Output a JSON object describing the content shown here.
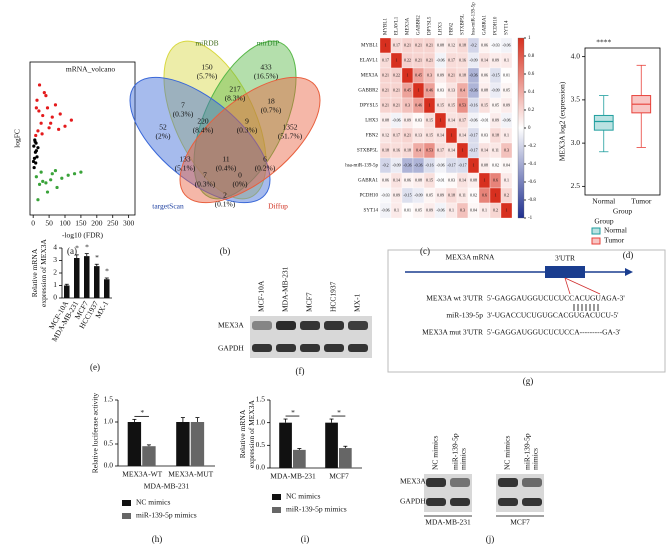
{
  "chart_data": [
    {
      "type": "scatter",
      "panel_label": "(a)",
      "title": "mRNA_volcano",
      "x_label": "-log10 (FDR)",
      "y_label": "logFC",
      "xlim": [
        -10,
        320
      ],
      "xticks": [
        0,
        50,
        100,
        150,
        200,
        250,
        300
      ],
      "ylim": [
        -4,
        6
      ],
      "series": [
        {
          "color": "#e41a1c",
          "x": [
            10,
            20,
            30,
            40,
            55,
            70,
            85,
            100,
            120,
            15,
            25,
            35,
            45,
            60,
            80,
            8,
            12,
            18,
            28,
            50
          ],
          "values": [
            3.0,
            4.5,
            2.5,
            3.8,
            2.0,
            3.2,
            2.6,
            1.8,
            2.2,
            1.5,
            2.0,
            4.0,
            3.0,
            2.4,
            1.6,
            1.2,
            3.5,
            2.8,
            1.3,
            1.7
          ]
        },
        {
          "color": "#000000",
          "x": [
            2,
            4,
            6,
            8,
            10,
            3,
            5,
            7,
            12,
            15,
            1,
            9
          ],
          "values": [
            0.5,
            -0.3,
            0.8,
            -0.6,
            0.2,
            -0.9,
            0.9,
            0.1,
            -0.2,
            0.4,
            -0.5,
            0.7
          ]
        },
        {
          "color": "#3aa33a",
          "x": [
            10,
            20,
            30,
            45,
            60,
            75,
            90,
            110,
            15,
            25,
            40,
            55,
            70,
            130,
            150
          ],
          "values": [
            -1.5,
            -2.0,
            -1.8,
            -2.5,
            -1.3,
            -2.2,
            -1.6,
            -1.4,
            -3.0,
            -1.2,
            -1.9,
            -1.7,
            -1.1,
            -1.3,
            -1.2
          ]
        }
      ]
    },
    {
      "type": "heatmap",
      "panel_label": "(c)",
      "labels": [
        "MYBL1",
        "ELAVL1",
        "MEX3A",
        "GABBR2",
        "DPYSL5",
        "LHX3",
        "FBN2",
        "STXBP5L",
        "hsa-miR-139-5p",
        "GABRA1",
        "PCDH10",
        "SYT14"
      ],
      "values": [
        [
          1,
          0.17,
          0.21,
          0.21,
          0.21,
          0.08,
          0.12,
          0.18,
          -0.2,
          0.06,
          -0.03,
          -0.06
        ],
        [
          0.17,
          1,
          0.22,
          0.21,
          0.21,
          -0.06,
          0.17,
          0.16,
          -0.09,
          0.14,
          0.09,
          0.1
        ],
        [
          0.21,
          0.22,
          1,
          0.45,
          0.3,
          0.09,
          0.21,
          0.18,
          -0.36,
          0.06,
          -0.15,
          0.01
        ],
        [
          0.21,
          0.21,
          0.45,
          1,
          0.46,
          0.03,
          0.13,
          0.4,
          -0.36,
          0.08,
          -0.09,
          0.05
        ],
        [
          0.21,
          0.21,
          0.3,
          0.46,
          1,
          0.15,
          0.15,
          0.53,
          -0.16,
          0.15,
          0.05,
          0.09
        ],
        [
          0.08,
          -0.06,
          0.09,
          0.03,
          0.15,
          1,
          0.14,
          0.17,
          -0.06,
          -0.01,
          0.09,
          -0.06
        ],
        [
          0.12,
          0.17,
          0.21,
          0.13,
          0.15,
          0.14,
          1,
          0.14,
          -0.17,
          0.03,
          0.18,
          0.1
        ],
        [
          0.18,
          0.16,
          0.18,
          0.4,
          0.53,
          0.17,
          0.14,
          1,
          -0.17,
          0.14,
          0.11,
          0.3
        ],
        [
          -0.2,
          -0.09,
          -0.36,
          -0.36,
          -0.16,
          -0.06,
          -0.17,
          -0.17,
          1,
          0.08,
          0.02,
          0.04
        ],
        [
          0.06,
          0.14,
          0.06,
          0.08,
          0.15,
          -0.01,
          0.03,
          0.14,
          0.08,
          1,
          0.6,
          0.1
        ],
        [
          -0.03,
          0.09,
          -0.15,
          -0.09,
          0.05,
          0.09,
          0.18,
          0.11,
          0.02,
          0.6,
          1,
          0.2
        ],
        [
          -0.06,
          0.1,
          0.01,
          0.05,
          0.09,
          -0.06,
          0.1,
          0.3,
          0.04,
          0.1,
          0.2,
          1
        ]
      ],
      "zlim": [
        -1,
        1
      ],
      "zticks": [
        1,
        0.8,
        0.6,
        0.4,
        0.2,
        0,
        -0.2,
        -0.4,
        -0.6,
        -0.8,
        -1
      ],
      "colors": [
        "#1f2f8f",
        "#ffffff",
        "#d7301f"
      ]
    },
    {
      "type": "box",
      "panel_label": "(d)",
      "annotation": "****",
      "y_label": "MEX3A log2 (expression)",
      "x_label": "Group",
      "legend_title": "Group",
      "categories": [
        "Normal",
        "Tumor"
      ],
      "colors": [
        "#1f9e9e",
        "#e8413a"
      ],
      "boxes": [
        {
          "min": 2.9,
          "q1": 3.15,
          "median": 3.25,
          "q3": 3.32,
          "max": 3.55
        },
        {
          "min": 2.95,
          "q1": 3.35,
          "median": 3.45,
          "q3": 3.55,
          "max": 3.9
        }
      ],
      "ylim": [
        2.4,
        4.1
      ],
      "yticks": [
        2.5,
        {
          "value": 3,
          "label": "3.0"
        },
        3.5,
        {
          "value": 4,
          "label": "4.0"
        }
      ]
    },
    {
      "type": "bar",
      "panel_label": "(e)",
      "y_label": [
        "Relative mRNA",
        "expression of MEX3A"
      ],
      "categories": [
        "MCF-10A",
        "MDA-MB-231",
        "MCF7",
        "HCC1937",
        "MX-1"
      ],
      "values": [
        1,
        3.2,
        3.35,
        2.55,
        1.5
      ],
      "errors": [
        0.1,
        0.25,
        0.2,
        0.15,
        0.1
      ],
      "annotations": [
        null,
        "*",
        "*",
        "*",
        "*"
      ],
      "color": "#111111",
      "ylim": [
        0,
        4
      ],
      "yticks": [
        0,
        1,
        2,
        3,
        4
      ]
    },
    {
      "type": "bar",
      "panel_label": "(h)",
      "y_label": [
        "Relative luciferase activity"
      ],
      "x_label": "MDA-MB-231",
      "categories": [
        "MEX3A-WT",
        "MEX3A-MUT"
      ],
      "series": [
        {
          "name": "NC mimics",
          "color": "#111111",
          "values": [
            1,
            1
          ],
          "errors": [
            0.06,
            0.1
          ]
        },
        {
          "name": "miR-139-5p mimics",
          "color": "#666666",
          "values": [
            0.45,
            1
          ],
          "errors": [
            0.03,
            0.1
          ]
        }
      ],
      "annotations": [
        "*",
        null
      ],
      "ylim": [
        0,
        1.5
      ],
      "yticks": [
        {
          "value": 0,
          "label": "0.0"
        },
        0.5,
        {
          "value": 1,
          "label": "1.0"
        },
        1.5
      ]
    },
    {
      "type": "bar",
      "panel_label": "(i)",
      "y_label": [
        "Relative mRNA",
        "expression of MEX3A"
      ],
      "categories": [
        "MDA-MB-231",
        "MCF7"
      ],
      "series": [
        {
          "name": "NC mimics",
          "color": "#111111",
          "values": [
            1,
            1
          ],
          "errors": [
            0.08,
            0.08
          ]
        },
        {
          "name": "miR-139-5p mimics",
          "color": "#666666",
          "values": [
            0.4,
            0.44
          ],
          "errors": [
            0.03,
            0.04
          ]
        }
      ],
      "annotations": [
        "*",
        "*"
      ],
      "ylim": [
        0,
        1.5
      ],
      "yticks": [
        {
          "value": 0,
          "label": "0.0"
        },
        0.5,
        {
          "value": 1,
          "label": "1.0"
        },
        1.5
      ]
    }
  ],
  "venn": {
    "panel_label": "(b)",
    "sets": [
      "miRDB",
      "mirDIP",
      "targetScan",
      "Diffup"
    ],
    "regions": [
      [
        "150",
        "(5.7%)"
      ],
      [
        "433",
        "(16.5%)"
      ],
      [
        "52",
        "(2%)"
      ],
      [
        "1352",
        "(51.7%)"
      ],
      [
        "7",
        "(0.3%)"
      ],
      [
        "217",
        "(8.3%)"
      ],
      [
        "220",
        "(8.4%)"
      ],
      [
        "9",
        "(0.3%)"
      ],
      [
        "18",
        "(0.7%)"
      ],
      [
        "133",
        "(5.1%)"
      ],
      [
        "11",
        "(0.4%)"
      ],
      [
        "7",
        "(0.3%)"
      ],
      [
        "0",
        "(0%)"
      ],
      [
        "6",
        "(0.2%)"
      ],
      [
        "2",
        "(0.1%)"
      ]
    ]
  },
  "blot_f": {
    "panel_label": "(f)",
    "columns": [
      "MCF-10A",
      "MDA-MB-231",
      "MCF7",
      "HCC1937",
      "MX-1"
    ],
    "rows": [
      "MEX3A",
      "GAPDH"
    ]
  },
  "sequence_g": {
    "panel_label": "(g)",
    "title": "MEX3A mRNA",
    "utr": "3'UTR",
    "rows": [
      [
        "MEX3A wt 3'UTR",
        "5'-GAGGAUGGUCUCUCCACUGUAGA-3'"
      ],
      [
        "miR-139-5p",
        "3'-UGACCUCUGUGCACGUGACUCU-5'"
      ],
      [
        "MEX3A mut 3'UTR",
        "5'-GAGGAUGGUCUCUCCA---------GA-3'"
      ]
    ]
  },
  "blot_j": {
    "panel_label": "(j)",
    "columns": [
      [
        "NC mimics"
      ],
      [
        "miR-139-5p",
        "mimics"
      ],
      [
        "NC mimics"
      ],
      [
        "miR-139-5p",
        "mimics"
      ]
    ],
    "rows": [
      "MEX3A",
      "GAPDH"
    ],
    "groups": [
      "MDA-MB-231",
      "MCF7"
    ]
  }
}
